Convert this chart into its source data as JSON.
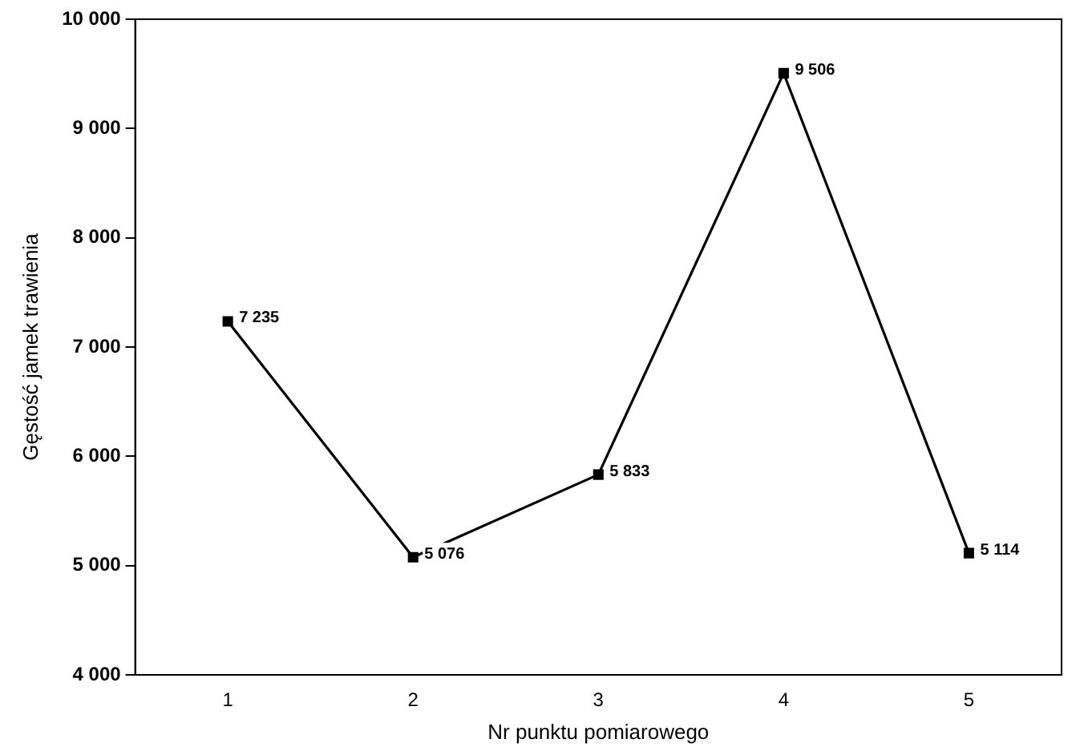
{
  "chart_data": {
    "type": "line",
    "xlabel": "Nr punktu pomiarowego",
    "ylabel": "Gęstość jamek trawienia",
    "categories": [
      "1",
      "2",
      "3",
      "4",
      "5"
    ],
    "series": [
      {
        "color": "#000000",
        "values": [
          7235,
          5076,
          5833,
          9506,
          5114
        ]
      }
    ],
    "value_labels": [
      "7 235",
      "5 076",
      "5 833",
      "9 506",
      "5 114"
    ],
    "ylim": [
      4000,
      10000
    ],
    "yticks": [
      {
        "value": 4000,
        "label": "4 000"
      },
      {
        "value": 5000,
        "label": "5 000"
      },
      {
        "value": 6000,
        "label": "6 000"
      },
      {
        "value": 7000,
        "label": "7 000"
      },
      {
        "value": 8000,
        "label": "8 000"
      },
      {
        "value": 9000,
        "label": "9 000"
      },
      {
        "value": 10000,
        "label": "10 000"
      }
    ],
    "grid": false,
    "legend": false,
    "marker": "square",
    "line_style": "solid"
  }
}
